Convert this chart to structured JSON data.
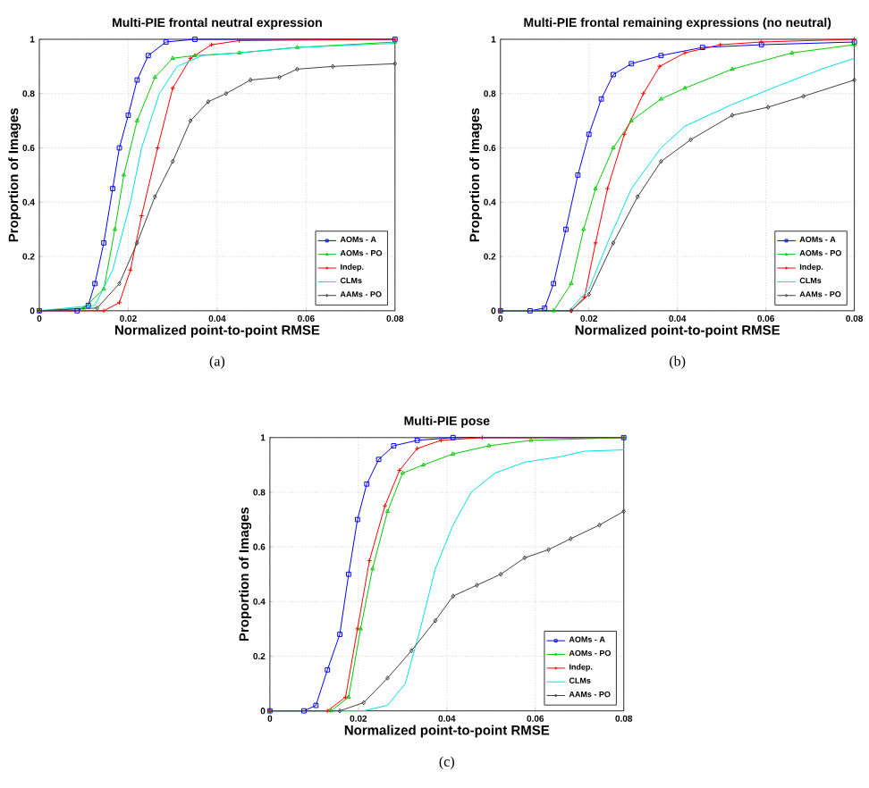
{
  "chart_data": [
    {
      "type": "line",
      "title": "Multi-PIE frontal neutral expression",
      "xlabel": "Normalized point-to-point RMSE",
      "ylabel": "Proportion of Images",
      "annotations": [
        "(a)"
      ],
      "xlim": [
        0,
        0.08
      ],
      "ylim": [
        0,
        1
      ],
      "xticks": [
        0,
        0.02,
        0.04,
        0.06,
        0.08
      ],
      "yticks": [
        0,
        0.2,
        0.4,
        0.6,
        0.8,
        1
      ],
      "grid": true,
      "legend": "bottom right",
      "series": [
        {
          "name": "AOMs - A",
          "color": "#0000ff",
          "marker": "square",
          "x": [
            0,
            0.0085,
            0.011,
            0.0125,
            0.0145,
            0.0165,
            0.018,
            0.02,
            0.022,
            0.0245,
            0.0285,
            0.035,
            0.08
          ],
          "values": [
            0,
            0,
            0.02,
            0.1,
            0.25,
            0.45,
            0.6,
            0.72,
            0.85,
            0.94,
            0.99,
            1,
            1
          ]
        },
        {
          "name": "AOMs - PO",
          "color": "#00cc00",
          "marker": "triangle",
          "x": [
            0,
            0.01,
            0.0145,
            0.017,
            0.019,
            0.022,
            0.026,
            0.03,
            0.035,
            0.045,
            0.058,
            0.08
          ],
          "values": [
            0,
            0.01,
            0.08,
            0.3,
            0.5,
            0.7,
            0.86,
            0.93,
            0.94,
            0.95,
            0.97,
            0.99
          ]
        },
        {
          "name": "Indep.",
          "color": "#ff0000",
          "marker": "cross",
          "x": [
            0,
            0.0145,
            0.018,
            0.0205,
            0.023,
            0.0266,
            0.03,
            0.034,
            0.0387,
            0.045,
            0.08
          ],
          "values": [
            0,
            0,
            0.03,
            0.15,
            0.35,
            0.6,
            0.82,
            0.93,
            0.98,
            0.995,
            1
          ]
        },
        {
          "name": "CLMs",
          "color": "#00e0e0",
          "marker": "none",
          "x": [
            0,
            0.0125,
            0.0165,
            0.0205,
            0.023,
            0.027,
            0.031,
            0.0367,
            0.045,
            0.058,
            0.08
          ],
          "values": [
            0,
            0.02,
            0.15,
            0.4,
            0.6,
            0.8,
            0.9,
            0.94,
            0.95,
            0.97,
            0.985
          ]
        },
        {
          "name": "AAMs - PO",
          "color": "#404040",
          "marker": "diamond",
          "x": [
            0,
            0.013,
            0.018,
            0.022,
            0.026,
            0.03,
            0.034,
            0.038,
            0.042,
            0.0475,
            0.054,
            0.058,
            0.066,
            0.08
          ],
          "values": [
            0,
            0.01,
            0.1,
            0.25,
            0.42,
            0.55,
            0.7,
            0.77,
            0.8,
            0.85,
            0.86,
            0.89,
            0.9,
            0.91
          ]
        }
      ]
    },
    {
      "type": "line",
      "title": "Multi-PIE frontal remaining expressions (no neutral)",
      "xlabel": "Normalized point-to-point RMSE",
      "ylabel": "Proportion of Images",
      "annotations": [
        "(b)"
      ],
      "xlim": [
        0,
        0.08
      ],
      "ylim": [
        0,
        1
      ],
      "xticks": [
        0,
        0.02,
        0.04,
        0.06,
        0.08
      ],
      "yticks": [
        0,
        0.2,
        0.4,
        0.6,
        0.8,
        1
      ],
      "grid": true,
      "legend": "bottom right",
      "series": [
        {
          "name": "AOMs - A",
          "color": "#0000ff",
          "marker": "square",
          "x": [
            0,
            0.0067,
            0.01,
            0.012,
            0.0148,
            0.0175,
            0.02,
            0.0228,
            0.0255,
            0.0296,
            0.0363,
            0.0457,
            0.059,
            0.08
          ],
          "values": [
            0,
            0,
            0.01,
            0.1,
            0.3,
            0.5,
            0.65,
            0.78,
            0.87,
            0.91,
            0.94,
            0.97,
            0.98,
            0.99
          ]
        },
        {
          "name": "AOMs - PO",
          "color": "#00cc00",
          "marker": "triangle",
          "x": [
            0,
            0.012,
            0.016,
            0.0188,
            0.0215,
            0.0255,
            0.0296,
            0.0363,
            0.0417,
            0.0524,
            0.0659,
            0.08
          ],
          "values": [
            0,
            0,
            0.1,
            0.3,
            0.45,
            0.6,
            0.7,
            0.78,
            0.82,
            0.89,
            0.95,
            0.98
          ]
        },
        {
          "name": "Indep.",
          "color": "#ff0000",
          "marker": "cross",
          "x": [
            0,
            0.016,
            0.019,
            0.0215,
            0.0242,
            0.028,
            0.0323,
            0.036,
            0.0417,
            0.0497,
            0.059,
            0.08
          ],
          "values": [
            0,
            0,
            0.05,
            0.25,
            0.45,
            0.65,
            0.8,
            0.9,
            0.95,
            0.98,
            0.99,
            1
          ]
        },
        {
          "name": "CLMs",
          "color": "#00e0e0",
          "marker": "none",
          "x": [
            0,
            0.0155,
            0.02,
            0.0242,
            0.0296,
            0.0363,
            0.0417,
            0.0524,
            0.063,
            0.0726,
            0.08
          ],
          "values": [
            0,
            0,
            0.08,
            0.25,
            0.45,
            0.6,
            0.68,
            0.76,
            0.83,
            0.89,
            0.93
          ]
        },
        {
          "name": "AAMs - PO",
          "color": "#404040",
          "marker": "diamond",
          "x": [
            0,
            0.016,
            0.02,
            0.0255,
            0.031,
            0.0363,
            0.043,
            0.0524,
            0.0605,
            0.0685,
            0.08
          ],
          "values": [
            0,
            0,
            0.06,
            0.25,
            0.42,
            0.55,
            0.63,
            0.72,
            0.75,
            0.79,
            0.85
          ]
        }
      ]
    },
    {
      "type": "line",
      "title": "Multi-PIE pose",
      "xlabel": "Normalized point-to-point RMSE",
      "ylabel": "Proportion of Images",
      "annotations": [
        "(c)"
      ],
      "xlim": [
        0,
        0.08
      ],
      "ylim": [
        0,
        1
      ],
      "xticks": [
        0,
        0.02,
        0.04,
        0.06,
        0.08
      ],
      "yticks": [
        0,
        0.2,
        0.4,
        0.6,
        0.8,
        1
      ],
      "grid": true,
      "legend": "bottom right",
      "series": [
        {
          "name": "AOMs - A",
          "color": "#0000ff",
          "marker": "square",
          "x": [
            0,
            0.0077,
            0.0104,
            0.013,
            0.0158,
            0.0178,
            0.0198,
            0.0219,
            0.0246,
            0.028,
            0.0333,
            0.0414,
            0.08
          ],
          "values": [
            0,
            0,
            0.02,
            0.15,
            0.28,
            0.5,
            0.7,
            0.83,
            0.92,
            0.97,
            0.99,
            1,
            1
          ]
        },
        {
          "name": "AOMs - PO",
          "color": "#00cc00",
          "marker": "triangle",
          "x": [
            0,
            0.0138,
            0.0178,
            0.0205,
            0.0232,
            0.0266,
            0.03,
            0.0347,
            0.0414,
            0.0495,
            0.059,
            0.08
          ],
          "values": [
            0,
            0,
            0.05,
            0.3,
            0.52,
            0.73,
            0.87,
            0.9,
            0.94,
            0.97,
            0.99,
            1
          ]
        },
        {
          "name": "Indep.",
          "color": "#ff0000",
          "marker": "cross",
          "x": [
            0,
            0.013,
            0.0171,
            0.0198,
            0.0225,
            0.026,
            0.0293,
            0.0333,
            0.0387,
            0.048,
            0.08
          ],
          "values": [
            0,
            0,
            0.05,
            0.3,
            0.55,
            0.75,
            0.88,
            0.96,
            0.99,
            1,
            1
          ]
        },
        {
          "name": "CLMs",
          "color": "#00e0e0",
          "marker": "none",
          "x": [
            0,
            0.0212,
            0.0266,
            0.0306,
            0.034,
            0.0374,
            0.0414,
            0.0455,
            0.0509,
            0.0576,
            0.0657,
            0.071,
            0.08
          ],
          "values": [
            0,
            0,
            0.02,
            0.1,
            0.3,
            0.52,
            0.68,
            0.8,
            0.87,
            0.91,
            0.93,
            0.95,
            0.955
          ]
        },
        {
          "name": "AAMs - PO",
          "color": "#404040",
          "marker": "diamond",
          "x": [
            0,
            0.0158,
            0.0212,
            0.0266,
            0.032,
            0.0374,
            0.0414,
            0.0468,
            0.0522,
            0.0576,
            0.063,
            0.068,
            0.0745,
            0.08
          ],
          "values": [
            0,
            0,
            0.03,
            0.12,
            0.22,
            0.33,
            0.42,
            0.46,
            0.5,
            0.56,
            0.59,
            0.63,
            0.68,
            0.73
          ]
        }
      ]
    }
  ]
}
